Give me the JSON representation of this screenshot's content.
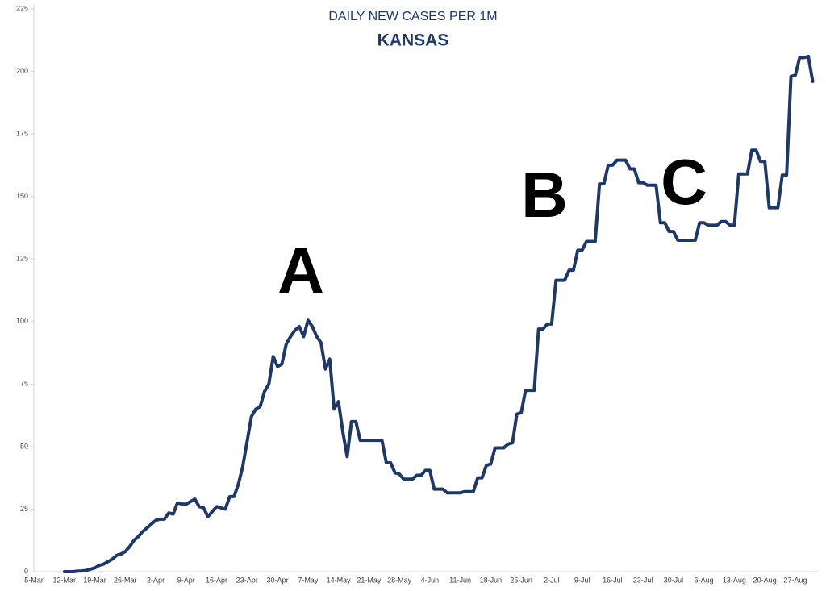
{
  "chart_data": {
    "type": "line",
    "title": "DAILY NEW CASES PER 1M",
    "subtitle": "KANSAS",
    "categories": [
      "5-Mar",
      null,
      null,
      null,
      null,
      null,
      null,
      "12-Mar",
      null,
      null,
      null,
      null,
      null,
      null,
      "19-Mar",
      null,
      null,
      null,
      null,
      null,
      null,
      "26-Mar",
      null,
      null,
      null,
      null,
      null,
      null,
      "2-Apr",
      null,
      null,
      null,
      null,
      null,
      null,
      "9-Apr",
      null,
      null,
      null,
      null,
      null,
      null,
      "16-Apr",
      null,
      null,
      null,
      null,
      null,
      null,
      "23-Apr",
      null,
      null,
      null,
      null,
      null,
      null,
      "30-Apr",
      null,
      null,
      null,
      null,
      null,
      null,
      "7-May",
      null,
      null,
      null,
      null,
      null,
      null,
      "14-May",
      null,
      null,
      null,
      null,
      null,
      null,
      "21-May",
      null,
      null,
      null,
      null,
      null,
      null,
      "28-May",
      null,
      null,
      null,
      null,
      null,
      null,
      "4-Jun",
      null,
      null,
      null,
      null,
      null,
      null,
      "11-Jun",
      null,
      null,
      null,
      null,
      null,
      null,
      "18-Jun",
      null,
      null,
      null,
      null,
      null,
      null,
      "25-Jun",
      null,
      null,
      null,
      null,
      null,
      null,
      "2-Jul",
      null,
      null,
      null,
      null,
      null,
      null,
      "9-Jul",
      null,
      null,
      null,
      null,
      null,
      null,
      "16-Jul",
      null,
      null,
      null,
      null,
      null,
      null,
      "23-Jul",
      null,
      null,
      null,
      null,
      null,
      null,
      "30-Jul",
      null,
      null,
      null,
      null,
      null,
      null,
      "6-Aug",
      null,
      null,
      null,
      null,
      null,
      null,
      "13-Aug",
      null,
      null,
      null,
      null,
      null,
      null,
      "20-Aug",
      null,
      null,
      null,
      null,
      null,
      null,
      "27-Aug",
      null,
      null,
      null,
      null
    ],
    "values": [
      null,
      null,
      null,
      null,
      null,
      null,
      null,
      0,
      0,
      0,
      0.2,
      0.3,
      0.5,
      1,
      1.5,
      2.5,
      3,
      4,
      5,
      6.5,
      7,
      8,
      10,
      12.5,
      14,
      16,
      17.5,
      19,
      20.5,
      21,
      21,
      23.5,
      23,
      27.5,
      27,
      27,
      28,
      29,
      26,
      25.5,
      22,
      24,
      26,
      25.5,
      25,
      30,
      30,
      35,
      42,
      52,
      62,
      65,
      66,
      72,
      75,
      86,
      82,
      83,
      91,
      94,
      96.5,
      98,
      94,
      100.5,
      98,
      94,
      91.5,
      81,
      85,
      65,
      68,
      56,
      46,
      60,
      60,
      52.5,
      52.5,
      52.5,
      52.5,
      52.5,
      52.5,
      43.5,
      43.5,
      39.5,
      39,
      37,
      37,
      37,
      38.5,
      38.5,
      40.5,
      40.5,
      33,
      33,
      33,
      31.5,
      31.5,
      31.5,
      31.5,
      32,
      32,
      32,
      37.5,
      37.5,
      42.5,
      43,
      49.5,
      49.5,
      49.5,
      51,
      51.5,
      63,
      63.5,
      72.5,
      72.5,
      72.5,
      97,
      97,
      99,
      99,
      116.5,
      116.5,
      116.5,
      120.5,
      120.5,
      128.5,
      128.5,
      132,
      132,
      132,
      155,
      155,
      162.5,
      162.5,
      164.5,
      164.5,
      164.5,
      161,
      161,
      155.5,
      155.5,
      154.5,
      154.5,
      154.5,
      139.5,
      139.5,
      136,
      136,
      132.5,
      132.5,
      132.5,
      132.5,
      132.5,
      139.5,
      139.5,
      138.5,
      138.5,
      138.5,
      140,
      140,
      138.5,
      138.5,
      159,
      159,
      159,
      168.5,
      168.5,
      164,
      164,
      145.5,
      145.5,
      145.5,
      158.5,
      158.5,
      198,
      198.5,
      205.5,
      205.5,
      206,
      196
    ],
    "color": "#203864",
    "ylim": [
      0,
      225
    ],
    "yticks": [
      0,
      25,
      50,
      75,
      100,
      125,
      150,
      175,
      200,
      225
    ],
    "grid": false,
    "annotations": [
      "A",
      "B",
      "C"
    ]
  }
}
